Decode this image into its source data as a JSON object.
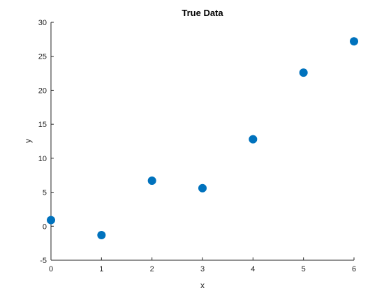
{
  "chart_data": {
    "type": "scatter",
    "title": "True Data",
    "xlabel": "x",
    "ylabel": "y",
    "xlim": [
      0,
      6
    ],
    "ylim": [
      -5,
      30
    ],
    "xticks": [
      0,
      1,
      2,
      3,
      4,
      5,
      6
    ],
    "yticks": [
      -5,
      0,
      5,
      10,
      15,
      20,
      25,
      30
    ],
    "grid": false,
    "series": [
      {
        "x": [
          0,
          1,
          2,
          3,
          4,
          5,
          6
        ],
        "y": [
          0.9,
          -1.3,
          6.7,
          5.6,
          12.8,
          22.6,
          27.2
        ],
        "color": "#0072BD"
      }
    ]
  }
}
